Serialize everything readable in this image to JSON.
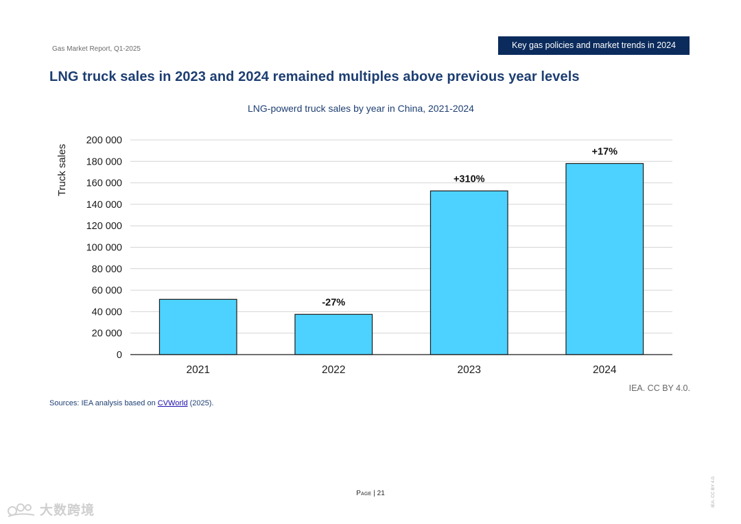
{
  "header": {
    "report_name": "Gas Market Report, Q1-2025",
    "section_banner": "Key gas policies and market trends in 2024"
  },
  "page_title": "LNG truck sales in 2023 and 2024 remained multiples above previous year levels",
  "chart_data": {
    "type": "bar",
    "title": "LNG-powerd truck sales by year in China, 2021-2024",
    "xlabel": "",
    "ylabel": "Truck sales",
    "categories": [
      "2021",
      "2022",
      "2023",
      "2024"
    ],
    "values": [
      51500,
      37500,
      152500,
      178000
    ],
    "annotations": [
      "",
      "-27%",
      "+310%",
      "+17%"
    ],
    "ylim": [
      0,
      200000
    ],
    "yticks": [
      0,
      20000,
      40000,
      60000,
      80000,
      100000,
      120000,
      140000,
      160000,
      180000,
      200000
    ],
    "ytick_labels": [
      "0",
      "20 000",
      "40 000",
      "60 000",
      "80 000",
      "100 000",
      "120 000",
      "140 000",
      "160 000",
      "180 000",
      "200 000"
    ],
    "grid": true,
    "bar_color": "#4dd2ff",
    "bar_edge_color": "#1a1a1a"
  },
  "credit": "IEA. CC BY 4.0.",
  "sources": {
    "prefix": "Sources: IEA analysis based on ",
    "link_text": "CVWorld",
    "suffix": " (2025)."
  },
  "footer": {
    "page_label": "Page",
    "page_number": "21",
    "vertical_license": "IEA. CC BY 4.0."
  },
  "watermark": {
    "text": "大数跨境"
  }
}
